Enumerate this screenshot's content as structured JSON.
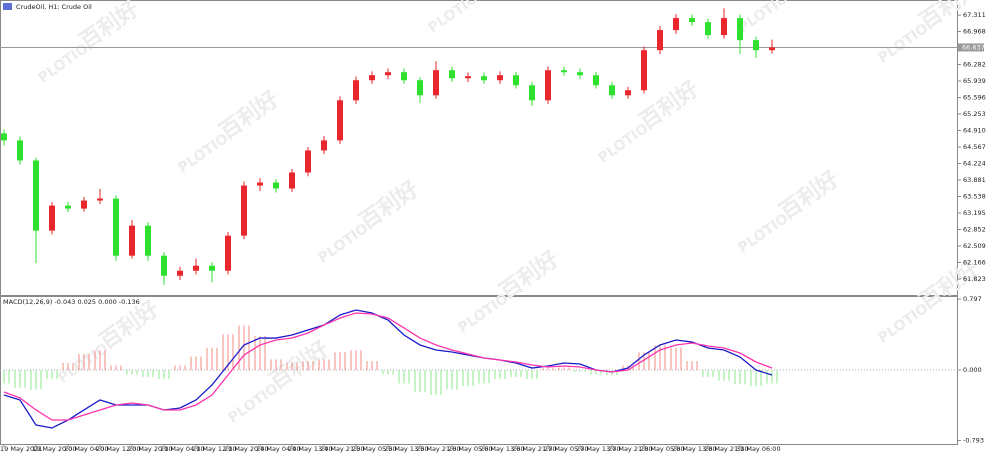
{
  "chart_data": [
    {
      "type": "candlestick",
      "title": "CrudeOil, H1: Crude Oil",
      "open": [
        64.85,
        64.705,
        64.288,
        62.828,
        63.349,
        63.287,
        63.454,
        63.495,
        62.307,
        62.932,
        62.307,
        61.89,
        61.994,
        62.098,
        61.994,
        62.724,
        63.766,
        63.829,
        63.704,
        64.038,
        64.496,
        64.705,
        65.539,
        65.956,
        66.06,
        66.123,
        65.956,
        65.643,
        66.164,
        65.997,
        66.039,
        65.956,
        66.06,
        65.851,
        65.539,
        66.164,
        66.123,
        66.06,
        65.851,
        65.643,
        65.747,
        66.581,
        66.998,
        67.248,
        67.165,
        66.894,
        67.248,
        66.79,
        66.581
      ],
      "high": [
        64.93,
        64.78,
        64.35,
        63.42,
        63.43,
        63.53,
        63.7,
        63.56,
        63.05,
        63.0,
        62.38,
        62.08,
        62.25,
        62.17,
        62.8,
        63.85,
        63.92,
        63.9,
        64.11,
        64.57,
        64.8,
        65.62,
        66.03,
        66.14,
        66.2,
        66.2,
        66.02,
        66.35,
        66.24,
        66.12,
        66.11,
        66.14,
        66.13,
        65.92,
        66.24,
        66.24,
        66.2,
        66.13,
        65.92,
        65.82,
        66.66,
        67.08,
        67.33,
        67.32,
        67.24,
        67.45,
        67.32,
        66.86,
        66.8
      ],
      "low": [
        64.6,
        64.2,
        62.15,
        62.75,
        63.21,
        63.22,
        63.38,
        62.2,
        62.25,
        62.2,
        61.7,
        61.8,
        61.92,
        61.75,
        61.92,
        62.65,
        63.65,
        63.62,
        63.63,
        63.96,
        64.42,
        64.63,
        65.46,
        65.88,
        65.98,
        65.88,
        65.48,
        65.57,
        65.92,
        65.92,
        65.88,
        65.88,
        65.78,
        65.42,
        65.46,
        66.05,
        65.99,
        65.78,
        65.57,
        65.57,
        65.68,
        66.5,
        66.92,
        67.09,
        66.82,
        66.82,
        66.5,
        66.42,
        66.51
      ],
      "close": [
        64.705,
        64.288,
        62.828,
        63.349,
        63.287,
        63.454,
        63.495,
        62.307,
        62.932,
        62.307,
        61.89,
        61.994,
        62.098,
        61.994,
        62.724,
        63.766,
        63.829,
        63.704,
        64.038,
        64.496,
        64.705,
        65.539,
        65.956,
        66.06,
        66.123,
        65.956,
        65.643,
        66.164,
        65.997,
        66.039,
        65.956,
        66.06,
        65.851,
        65.539,
        66.164,
        66.123,
        66.06,
        65.851,
        65.643,
        65.747,
        66.581,
        66.998,
        67.248,
        67.165,
        66.894,
        67.248,
        66.79,
        66.581,
        66.637
      ],
      "up_color": "#e8262c",
      "down_color": "#2fe02f",
      "ylim": [
        61.49,
        67.624
      ],
      "yticks": [
        67.311,
        66.968,
        66.282,
        65.939,
        65.596,
        65.253,
        {
          "value": 64.91,
          "label": "64.910"
        },
        64.567,
        64.224,
        63.881,
        63.538,
        63.195,
        62.852,
        62.509,
        62.166,
        61.823
      ],
      "price_line": 66.637
    },
    {
      "type": "macd",
      "title": "MACD(12,26,9) -0.043 0.025 0.000 -0.136",
      "categories": [
        "19 May 2021",
        null,
        "19 May 20:00",
        null,
        "20 May 04:00",
        null,
        "20 May 12:00",
        null,
        "20 May 20:00",
        null,
        "21 May 04:00",
        null,
        "21 May 12:00",
        null,
        "21 May 20:00",
        null,
        "24 May 04:00",
        null,
        "24 May 13:00",
        null,
        "24 May 21:00",
        null,
        "25 May 05:00",
        null,
        "25 May 13:00",
        null,
        "25 May 21:00",
        null,
        "26 May 05:00",
        null,
        "26 May 13:00",
        null,
        "26 May 21:00",
        null,
        "27 May 05:00",
        null,
        "27 May 13:00",
        null,
        "27 May 21:00",
        null,
        "28 May 05:00",
        null,
        "28 May 13:00",
        null,
        "28 May 21:00",
        null,
        "31 May 06:00",
        null,
        null
      ],
      "histogram": [
        -0.15,
        -0.2,
        -0.22,
        -0.1,
        0.08,
        0.18,
        0.22,
        0.05,
        -0.05,
        -0.08,
        -0.1,
        0.05,
        0.15,
        0.25,
        0.4,
        0.5,
        0.38,
        0.12,
        0.08,
        0.1,
        0.12,
        0.2,
        0.22,
        0.1,
        -0.05,
        -0.15,
        -0.25,
        -0.28,
        -0.22,
        -0.18,
        -0.15,
        -0.1,
        -0.08,
        -0.1,
        0.02,
        0.03,
        -0.02,
        -0.05,
        -0.06,
        0.05,
        0.2,
        0.28,
        0.25,
        0.1,
        -0.08,
        -0.12,
        -0.16,
        -0.18,
        -0.15
      ],
      "hist_up_color": "#f28b82",
      "hist_down_color": "#8fe98f",
      "series": [
        {
          "color": "#1a1acc",
          "values": [
            -0.281,
            -0.337,
            -0.618,
            -0.651,
            -0.562,
            -0.449,
            -0.337,
            -0.393,
            -0.393,
            -0.393,
            -0.449,
            -0.427,
            -0.337,
            -0.168,
            0.056,
            0.281,
            0.359,
            0.359,
            0.393,
            0.449,
            0.505,
            0.618,
            0.674,
            0.64,
            0.562,
            0.393,
            0.281,
            0.225,
            0.202,
            0.168,
            0.135,
            0.112,
            0.079,
            0.022,
            0.045,
            0.079,
            0.067,
            0,
            -0.022,
            0.022,
            0.168,
            0.281,
            0.337,
            0.314,
            0.247,
            0.225,
            0.146,
            0,
            -0.056
          ]
        },
        {
          "color": "#ff33aa",
          "values": [
            -0.247,
            -0.314,
            -0.449,
            -0.562,
            -0.562,
            -0.505,
            -0.449,
            -0.393,
            -0.371,
            -0.393,
            -0.449,
            -0.449,
            -0.393,
            -0.281,
            -0.056,
            0.168,
            0.281,
            0.337,
            0.359,
            0.416,
            0.505,
            0.584,
            0.64,
            0.629,
            0.584,
            0.472,
            0.359,
            0.281,
            0.225,
            0.18,
            0.135,
            0.112,
            0.09,
            0.056,
            0.034,
            0.045,
            0.034,
            0,
            -0.022,
            0,
            0.112,
            0.225,
            0.281,
            0.303,
            0.27,
            0.247,
            0.191,
            0.09,
            0.022
          ]
        }
      ],
      "ylim": [
        -0.82,
        0.82
      ],
      "yticks": [
        0.797,
        {
          "value": 0,
          "label": "0.000"
        },
        -0.793
      ]
    }
  ],
  "watermark": {
    "brand": "PLOTIO",
    "name": "百利好"
  }
}
